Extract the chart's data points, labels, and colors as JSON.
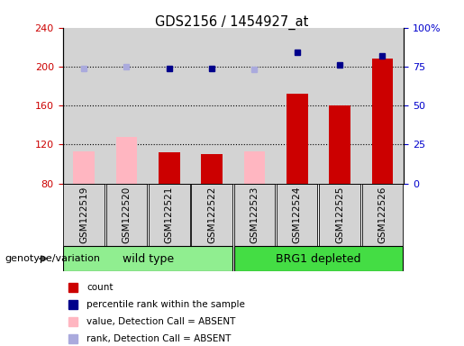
{
  "title": "GDS2156 / 1454927_at",
  "samples": [
    "GSM122519",
    "GSM122520",
    "GSM122521",
    "GSM122522",
    "GSM122523",
    "GSM122524",
    "GSM122525",
    "GSM122526"
  ],
  "bar_values": [
    113,
    128,
    112,
    110,
    113,
    172,
    160,
    208
  ],
  "bar_absent": [
    true,
    true,
    false,
    false,
    true,
    false,
    false,
    false
  ],
  "rank_values": [
    74,
    75,
    74,
    74,
    73,
    84,
    76,
    82
  ],
  "rank_absent": [
    true,
    true,
    false,
    false,
    true,
    false,
    false,
    false
  ],
  "ylim_left": [
    80,
    240
  ],
  "ylim_right": [
    0,
    100
  ],
  "yticks_left": [
    80,
    120,
    160,
    200,
    240
  ],
  "yticks_right": [
    0,
    25,
    50,
    75,
    100
  ],
  "bar_color_present": "#CC0000",
  "bar_color_absent": "#FFB6C1",
  "rank_color_present": "#00008B",
  "rank_color_absent": "#AAAADD",
  "axis_left_color": "#CC0000",
  "axis_right_color": "#0000CC",
  "plot_bg_color": "#D3D3D3",
  "wt_color": "#90EE90",
  "brg_color": "#44DD44",
  "legend_items": [
    "count",
    "percentile rank within the sample",
    "value, Detection Call = ABSENT",
    "rank, Detection Call = ABSENT"
  ],
  "legend_colors": [
    "#CC0000",
    "#00008B",
    "#FFB6C1",
    "#AAAADD"
  ]
}
